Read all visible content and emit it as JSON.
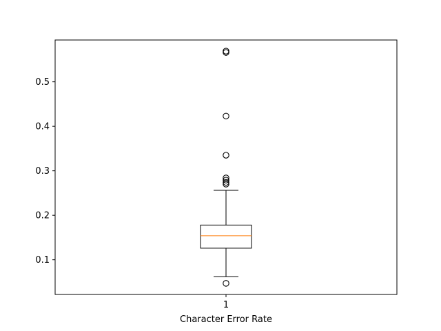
{
  "chart_data": {
    "type": "box",
    "title": "",
    "xlabel": "Character Error Rate",
    "ylabel": "",
    "categories": [
      "1"
    ],
    "ylim": [
      0.022,
      0.594
    ],
    "yticks": [
      0.1,
      0.2,
      0.3,
      0.4,
      0.5
    ],
    "ytick_labels": [
      "0.1",
      "0.2",
      "0.3",
      "0.4",
      "0.5"
    ],
    "grid": false,
    "boxes": [
      {
        "category": "1",
        "whisker_low": 0.062,
        "q1": 0.126,
        "median": 0.154,
        "q3": 0.178,
        "whisker_high": 0.256,
        "outliers": [
          0.047,
          0.27,
          0.274,
          0.279,
          0.284,
          0.335,
          0.423,
          0.566,
          0.569
        ]
      }
    ],
    "colors": {
      "box": "#000000",
      "median": "#ff7f0e",
      "axes": "#000000"
    }
  }
}
